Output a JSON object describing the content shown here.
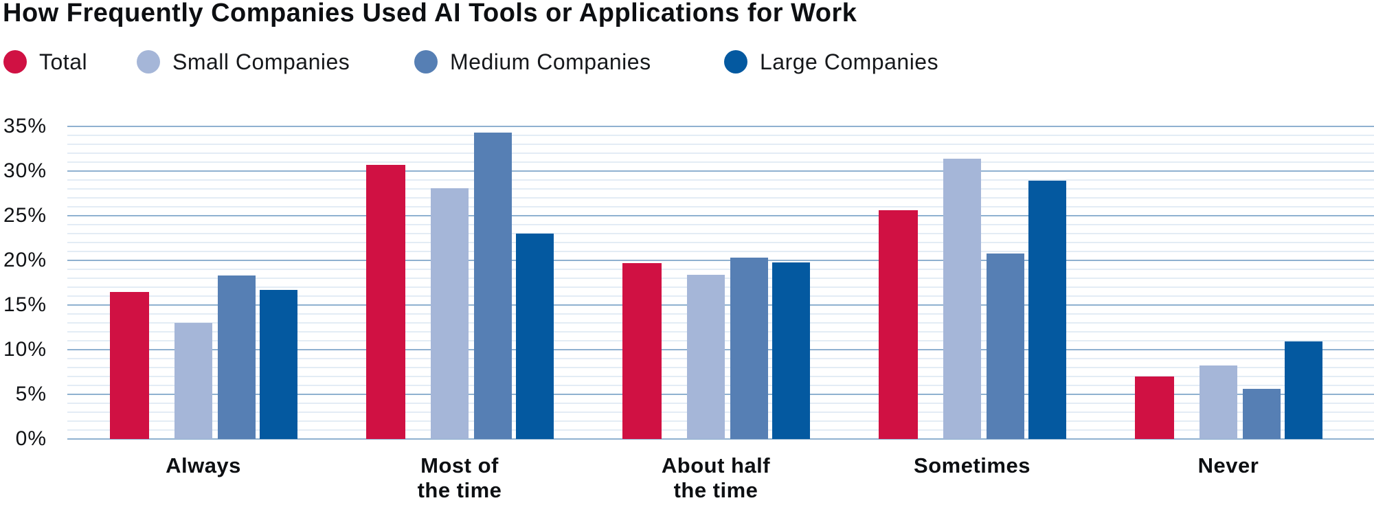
{
  "title": "How Frequently Companies Used AI Tools or Applications for Work",
  "legend": [
    {
      "label": "Total",
      "color": "#d01143"
    },
    {
      "label": "Small Companies",
      "color": "#a5b6d8"
    },
    {
      "label": "Medium Companies",
      "color": "#567fb4"
    },
    {
      "label": "Large Companies",
      "color": "#0459a0"
    }
  ],
  "chart_data": {
    "type": "bar",
    "title": "How Frequently Companies Used AI Tools or Applications for Work",
    "categories": [
      "Always",
      "Most of\nthe time",
      "About half\nthe time",
      "Sometimes",
      "Never"
    ],
    "series": [
      {
        "name": "Total",
        "color": "#d01143",
        "values": [
          16.5,
          30.7,
          19.7,
          25.6,
          7.0
        ]
      },
      {
        "name": "Small Companies",
        "color": "#a5b6d8",
        "values": [
          13.0,
          28.1,
          18.4,
          31.4,
          8.2
        ]
      },
      {
        "name": "Medium Companies",
        "color": "#567fb4",
        "values": [
          18.3,
          34.3,
          20.3,
          20.8,
          5.6
        ]
      },
      {
        "name": "Large Companies",
        "color": "#0459a0",
        "values": [
          16.7,
          23.0,
          19.8,
          28.9,
          10.9
        ]
      }
    ],
    "xlabel": "",
    "ylabel": "",
    "ylim": [
      0,
      35
    ],
    "yticks": [
      "0%",
      "5%",
      "10%",
      "15%",
      "20%",
      "25%",
      "30%",
      "35%"
    ],
    "grid": {
      "major_step": 5,
      "minor_step": 1,
      "major_color": "#8fb1d0",
      "minor_color": "#e3ecf5"
    },
    "legend_position": "top-left"
  }
}
